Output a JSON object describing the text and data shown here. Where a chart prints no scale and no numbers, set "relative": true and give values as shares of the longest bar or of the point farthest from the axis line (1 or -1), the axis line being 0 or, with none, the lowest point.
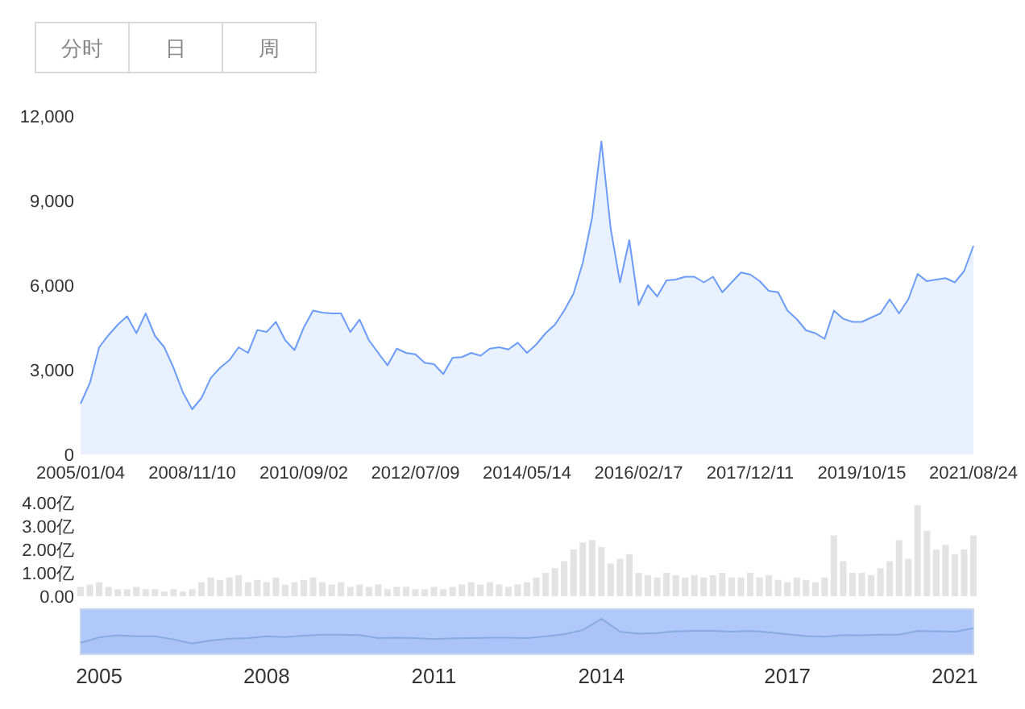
{
  "chart_data": [
    {
      "type": "other",
      "annotations": [
        "分时",
        "日",
        "周"
      ]
    },
    {
      "type": "area",
      "color": "#6b9cf7",
      "ylim": [
        0,
        12000
      ],
      "yticks": [
        0,
        {
          "value": 3000,
          "label": "3,000"
        },
        {
          "value": 6000,
          "label": "6,000"
        },
        {
          "value": 9000,
          "label": "9,000"
        },
        {
          "value": 12000,
          "label": "12,000"
        }
      ],
      "categories": [
        "2005/01/04",
        null,
        null,
        null,
        null,
        null,
        null,
        null,
        null,
        null,
        null,
        null,
        "2008/11/10",
        null,
        null,
        null,
        null,
        null,
        null,
        null,
        null,
        null,
        null,
        null,
        "2010/09/02",
        null,
        null,
        null,
        null,
        null,
        null,
        null,
        null,
        null,
        null,
        null,
        "2012/07/09",
        null,
        null,
        null,
        null,
        null,
        null,
        null,
        null,
        null,
        null,
        null,
        "2014/05/14",
        null,
        null,
        null,
        null,
        null,
        null,
        null,
        null,
        null,
        null,
        null,
        "2016/02/17",
        null,
        null,
        null,
        null,
        null,
        null,
        null,
        null,
        null,
        null,
        null,
        "2017/12/11",
        null,
        null,
        null,
        null,
        null,
        null,
        null,
        null,
        null,
        null,
        null,
        "2019/10/15",
        null,
        null,
        null,
        null,
        null,
        null,
        null,
        null,
        null,
        null,
        null,
        "2021/08/24"
      ],
      "values": [
        1800,
        2530,
        3800,
        4230,
        4600,
        4900,
        4300,
        5000,
        4200,
        3800,
        3070,
        2200,
        1600,
        2000,
        2710,
        3070,
        3340,
        3800,
        3600,
        4410,
        4340,
        4700,
        4050,
        3700,
        4500,
        5100,
        5030,
        5000,
        5000,
        4340,
        4780,
        4050,
        3600,
        3160,
        3750,
        3600,
        3550,
        3250,
        3200,
        2850,
        3430,
        3450,
        3600,
        3500,
        3750,
        3800,
        3720,
        3960,
        3600,
        3900,
        4300,
        4600,
        5100,
        5700,
        6800,
        8400,
        11100,
        8000,
        6100,
        7600,
        5300,
        6000,
        5600,
        6170,
        6200,
        6300,
        6300,
        6100,
        6300,
        5750,
        6100,
        6450,
        6380,
        6150,
        5800,
        5750,
        5100,
        4800,
        4400,
        4300,
        4100,
        5100,
        4810,
        4700,
        4700,
        4850,
        5000,
        5500,
        5000,
        5500,
        6400,
        6140,
        6200,
        6250,
        6100,
        6500,
        7400
      ]
    },
    {
      "type": "bar",
      "color": "#e3e3e3",
      "ylim": [
        0,
        4
      ],
      "tick_labels": "y",
      "yticks": [
        {
          "value": 0,
          "label": "0.00"
        },
        {
          "value": 1,
          "label": "1.00亿"
        },
        {
          "value": 2,
          "label": "2.00亿"
        },
        {
          "value": 3,
          "label": "3.00亿"
        },
        {
          "value": 4,
          "label": "4.00亿"
        }
      ],
      "categories": [
        null,
        null,
        null,
        null,
        null,
        null,
        null,
        null,
        null,
        null,
        null,
        null,
        null,
        null,
        null,
        null,
        null,
        null,
        null,
        null,
        null,
        null,
        null,
        null,
        null,
        null,
        null,
        null,
        null,
        null,
        null,
        null,
        null,
        null,
        null,
        null,
        null,
        null,
        null,
        null,
        null,
        null,
        null,
        null,
        null,
        null,
        null,
        null,
        null,
        null,
        null,
        null,
        null,
        null,
        null,
        null,
        null,
        null,
        null,
        null,
        null,
        null,
        null,
        null,
        null,
        null,
        null,
        null,
        null,
        null,
        null,
        null,
        null,
        null,
        null,
        null,
        null,
        null,
        null,
        null,
        null,
        null,
        null,
        null,
        null,
        null,
        null,
        null,
        null,
        null,
        null,
        null,
        null,
        null,
        null,
        null,
        null
      ],
      "values": [
        0.4,
        0.5,
        0.6,
        0.4,
        0.3,
        0.3,
        0.4,
        0.3,
        0.3,
        0.2,
        0.3,
        0.2,
        0.3,
        0.6,
        0.8,
        0.7,
        0.8,
        0.9,
        0.6,
        0.7,
        0.6,
        0.8,
        0.5,
        0.6,
        0.7,
        0.8,
        0.6,
        0.5,
        0.6,
        0.4,
        0.5,
        0.4,
        0.5,
        0.3,
        0.4,
        0.4,
        0.3,
        0.3,
        0.4,
        0.3,
        0.4,
        0.5,
        0.6,
        0.5,
        0.6,
        0.5,
        0.4,
        0.5,
        0.6,
        0.8,
        1.0,
        1.2,
        1.5,
        2.0,
        2.3,
        2.4,
        2.1,
        1.4,
        1.6,
        1.8,
        1.0,
        0.9,
        0.8,
        1.0,
        0.9,
        0.8,
        0.9,
        0.8,
        0.9,
        1.0,
        0.8,
        0.8,
        1.0,
        0.8,
        0.9,
        0.7,
        0.6,
        0.8,
        0.7,
        0.6,
        0.8,
        2.6,
        1.5,
        1.0,
        1.0,
        0.9,
        1.2,
        1.5,
        2.4,
        1.6,
        3.9,
        2.8,
        2.0,
        2.2,
        1.8,
        2.0,
        2.6
      ]
    },
    {
      "type": "area",
      "color": "#8aa8e2",
      "relative": true,
      "tick_labels": "x",
      "categories": [
        null,
        "2005",
        null,
        null,
        null,
        null,
        null,
        null,
        null,
        null,
        "2008",
        null,
        null,
        null,
        null,
        null,
        null,
        null,
        null,
        "2011",
        null,
        null,
        null,
        null,
        null,
        null,
        null,
        null,
        "2014",
        null,
        null,
        null,
        null,
        null,
        null,
        null,
        null,
        null,
        "2017",
        null,
        null,
        null,
        null,
        null,
        null,
        null,
        null,
        "2021",
        null
      ],
      "values": [
        0.29,
        0.45,
        0.51,
        0.48,
        0.48,
        0.39,
        0.27,
        0.36,
        0.41,
        0.43,
        0.48,
        0.46,
        0.5,
        0.53,
        0.53,
        0.52,
        0.43,
        0.44,
        0.43,
        0.4,
        0.42,
        0.43,
        0.44,
        0.44,
        0.43,
        0.48,
        0.54,
        0.67,
        1,
        0.62,
        0.56,
        0.58,
        0.63,
        0.64,
        0.64,
        0.62,
        0.64,
        0.6,
        0.54,
        0.49,
        0.47,
        0.52,
        0.51,
        0.53,
        0.53,
        0.64,
        0.63,
        0.62,
        0.72
      ]
    }
  ]
}
